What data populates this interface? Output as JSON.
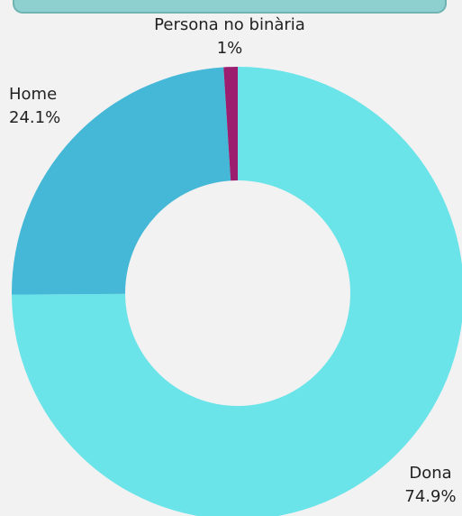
{
  "chart_data": {
    "type": "pie",
    "donut": true,
    "categories": [
      "Dona",
      "Home",
      "Persona no binària"
    ],
    "values": [
      74.9,
      24.1,
      1
    ],
    "value_labels": [
      "74.9%",
      "24.1%",
      "1%"
    ],
    "colors": [
      "#6ae4e8",
      "#44b8d6",
      "#9b1f6e"
    ]
  }
}
